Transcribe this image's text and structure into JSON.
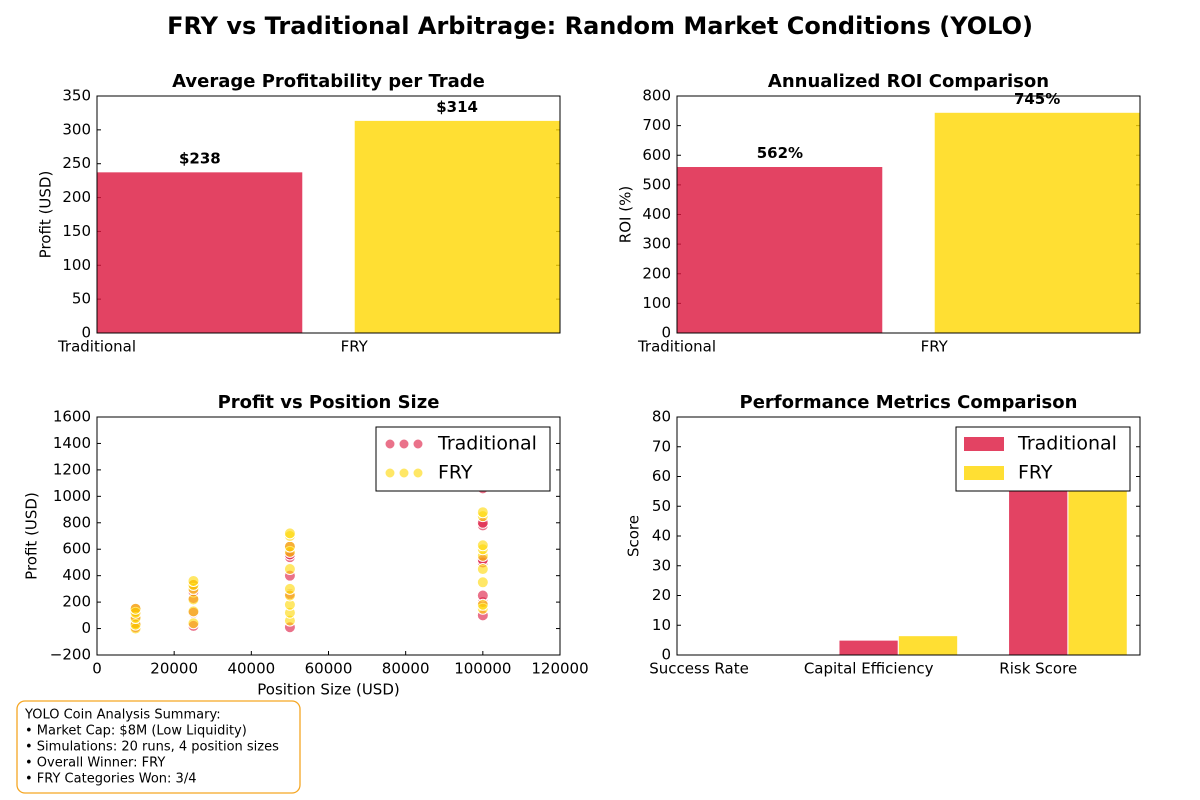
{
  "title": "FRY vs Traditional Arbitrage: Random Market Conditions (YOLO)",
  "summary": {
    "lines": [
      "YOLO Coin Analysis Summary:",
      "• Market Cap: $8M (Low Liquidity)",
      "• Simulations: 20 runs, 4 position sizes",
      "• Overall Winner: FRY",
      "• FRY Categories Won: 3/4"
    ]
  },
  "chart_data": [
    {
      "type": "bar",
      "title": "Average Profitability per Trade",
      "ylabel": "Profit (USD)",
      "categories": [
        "Traditional",
        "FRY"
      ],
      "values": [
        238,
        314
      ],
      "value_labels": [
        "$238",
        "$314"
      ],
      "colors": [
        "#dc143c",
        "#ffd700"
      ],
      "ylim": [
        0,
        350
      ],
      "yticks": [
        0,
        50,
        100,
        150,
        200,
        250,
        300,
        350
      ]
    },
    {
      "type": "bar",
      "title": "Annualized ROI Comparison",
      "ylabel": "ROI (%)",
      "categories": [
        "Traditional",
        "FRY"
      ],
      "values": [
        562,
        745
      ],
      "value_labels": [
        "562%",
        "745%"
      ],
      "colors": [
        "#dc143c",
        "#ffd700"
      ],
      "ylim": [
        0,
        800
      ],
      "yticks": [
        0,
        100,
        200,
        300,
        400,
        500,
        600,
        700,
        800
      ]
    },
    {
      "type": "scatter",
      "title": "Profit vs Position Size",
      "xlabel": "Position Size (USD)",
      "ylabel": "Profit (USD)",
      "legend": "upper right",
      "series": [
        {
          "name": "Traditional",
          "color": "#dc143c",
          "x": [
            10000,
            10000,
            10000,
            10000,
            10000,
            25000,
            25000,
            25000,
            25000,
            25000,
            50000,
            50000,
            50000,
            50000,
            50000,
            50000,
            100000,
            100000,
            100000,
            100000,
            100000,
            100000,
            100000,
            100000
          ],
          "values": [
            10,
            40,
            90,
            130,
            150,
            20,
            120,
            230,
            280,
            330,
            10,
            260,
            400,
            540,
            560,
            620,
            100,
            200,
            250,
            500,
            520,
            780,
            800,
            1060
          ]
        },
        {
          "name": "FRY",
          "color": "#ffd700",
          "x": [
            10000,
            10000,
            10000,
            10000,
            10000,
            25000,
            25000,
            25000,
            25000,
            25000,
            25000,
            50000,
            50000,
            50000,
            50000,
            50000,
            50000,
            50000,
            50000,
            50000,
            50000,
            100000,
            100000,
            100000,
            100000,
            100000,
            100000,
            100000,
            100000,
            100000
          ],
          "values": [
            0,
            30,
            80,
            120,
            150,
            40,
            130,
            220,
            300,
            330,
            360,
            60,
            120,
            180,
            250,
            300,
            450,
            580,
            620,
            700,
            720,
            150,
            180,
            350,
            450,
            550,
            600,
            630,
            850,
            880
          ]
        }
      ],
      "xlim": [
        0,
        120000
      ],
      "xticks": [
        0,
        20000,
        40000,
        60000,
        80000,
        100000,
        120000
      ],
      "ylim": [
        -200,
        1600
      ],
      "yticks": [
        {
          "value": -200,
          "label": "−200"
        },
        0,
        200,
        400,
        600,
        800,
        1000,
        1200,
        1400,
        1600
      ]
    },
    {
      "type": "bar",
      "title": "Performance Metrics Comparison",
      "ylabel": "Score",
      "legend": "upper right",
      "categories": [
        "Success Rate",
        "Capital Efficiency",
        "Risk Score"
      ],
      "series": [
        {
          "name": "Traditional",
          "color": "#dc143c",
          "values": [
            0,
            5,
            63
          ]
        },
        {
          "name": "FRY",
          "color": "#ffd700",
          "values": [
            0,
            6.5,
            60
          ]
        }
      ],
      "ylim": [
        0,
        80
      ],
      "yticks": [
        0,
        10,
        20,
        30,
        40,
        50,
        60,
        70,
        80
      ]
    }
  ]
}
